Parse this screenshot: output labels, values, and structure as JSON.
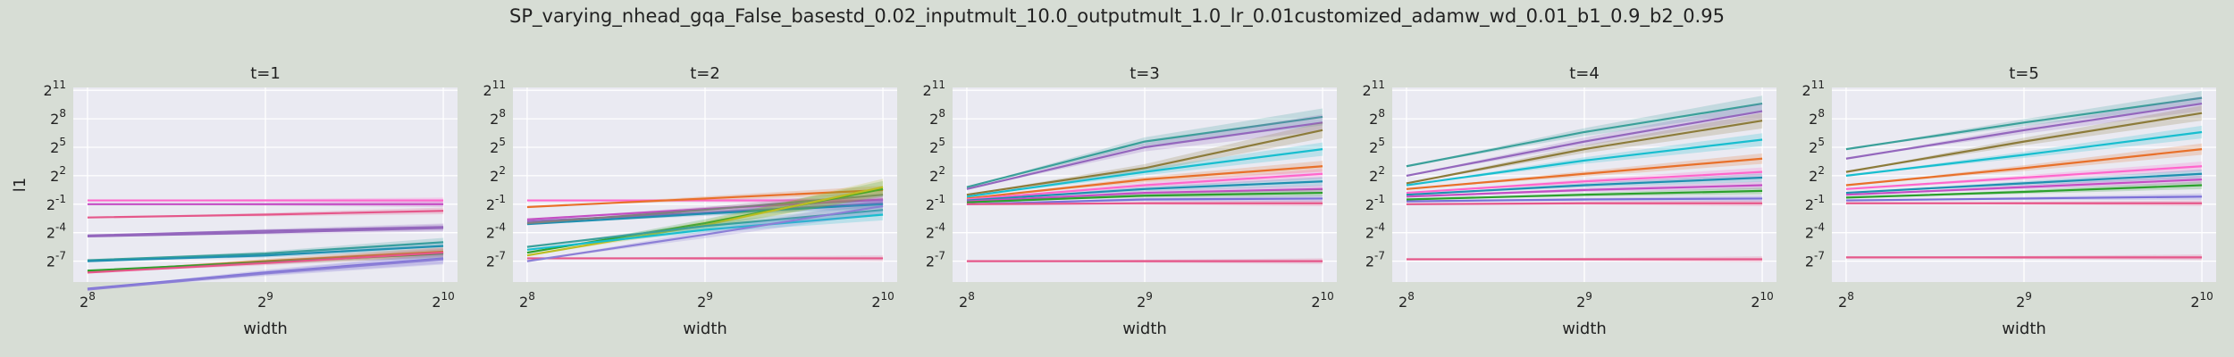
{
  "figure": {
    "suptitle": "SP_varying_nhead_gqa_False_basestd_0.02_inputmult_10.0_outputmult_1.0_lr_0.01customized_adamw_wd_0.01_b1_0.9_b2_0.95",
    "background": "#d7ddd5",
    "panel_background": "#eaeaf2"
  },
  "chart_data": [
    {
      "type": "line",
      "title": "t=1",
      "xlabel": "width",
      "ylabel": "l1",
      "xscale": "log2",
      "yscale": "log2",
      "x": [
        256,
        512,
        1024
      ],
      "xticks": [
        "2^8",
        "2^9",
        "2^10"
      ],
      "yticks": [
        "2^-7",
        "2^-4",
        "2^-1",
        "2^2",
        "2^5",
        "2^8",
        "2^11"
      ],
      "ylim_log2": [
        -9.2,
        11.3
      ],
      "grid": true,
      "series": [
        {
          "color": "#ff66cc",
          "log2_values": [
            -0.6,
            -0.6,
            -0.6
          ]
        },
        {
          "color": "#c44ec4",
          "log2_values": [
            -1.0,
            -1.0,
            -1.0
          ]
        },
        {
          "color": "#e5578a",
          "log2_values": [
            -2.4,
            -2.1,
            -1.7
          ]
        },
        {
          "color": "#9467bd",
          "log2_values": [
            -4.3,
            -3.8,
            -3.4
          ]
        },
        {
          "color": "#9467bd",
          "log2_values": [
            -4.4,
            -4.0,
            -3.5
          ]
        },
        {
          "color": "#3ba09a",
          "log2_values": [
            -6.9,
            -6.2,
            -5.0
          ]
        },
        {
          "color": "#1f8fb0",
          "log2_values": [
            -7.0,
            -6.4,
            -5.4
          ]
        },
        {
          "color": "#e8702a",
          "log2_values": [
            -8.1,
            -7.0,
            -6.0
          ]
        },
        {
          "color": "#2ca02c",
          "log2_values": [
            -8.0,
            -7.1,
            -6.2
          ]
        },
        {
          "color": "#e5578a",
          "log2_values": [
            -8.2,
            -7.2,
            -6.1
          ]
        },
        {
          "color": "#7b6fd8",
          "log2_values": [
            -9.9,
            -8.2,
            -6.7
          ]
        },
        {
          "color": "#8c7fd6",
          "log2_values": [
            -10.0,
            -8.3,
            -6.8
          ]
        }
      ]
    },
    {
      "type": "line",
      "title": "t=2",
      "xlabel": "width",
      "ylabel": "",
      "xscale": "log2",
      "yscale": "log2",
      "x": [
        256,
        512,
        1024
      ],
      "xticks": [
        "2^8",
        "2^9",
        "2^10"
      ],
      "yticks": [
        "2^-7",
        "2^-4",
        "2^-1",
        "2^2",
        "2^5",
        "2^8",
        "2^11"
      ],
      "ylim_log2": [
        -9.2,
        11.3
      ],
      "grid": true,
      "series": [
        {
          "color": "#e5578a",
          "log2_values": [
            -6.7,
            -6.7,
            -6.7
          ]
        },
        {
          "color": "#ff66cc",
          "log2_values": [
            -0.6,
            -0.6,
            -0.6
          ]
        },
        {
          "color": "#e8702a",
          "log2_values": [
            -1.3,
            -0.4,
            0.5
          ]
        },
        {
          "color": "#c44ec4",
          "log2_values": [
            -2.6,
            -1.5,
            -0.5
          ]
        },
        {
          "color": "#9467bd",
          "log2_values": [
            -2.8,
            -1.9,
            -0.9
          ]
        },
        {
          "color": "#1f8fb0",
          "log2_values": [
            -3.1,
            -2.0,
            -1.0
          ]
        },
        {
          "color": "#7f7f7f",
          "log2_values": [
            -3.0,
            -1.6,
            0.0
          ]
        },
        {
          "color": "#2ca02c",
          "log2_values": [
            -6.1,
            -3.0,
            0.6
          ]
        },
        {
          "color": "#bcbd22",
          "log2_values": [
            -6.4,
            -3.2,
            0.8
          ]
        },
        {
          "color": "#3ba09a",
          "log2_values": [
            -5.5,
            -3.3,
            -1.6
          ]
        },
        {
          "color": "#17becf",
          "log2_values": [
            -5.8,
            -3.7,
            -2.1
          ]
        },
        {
          "color": "#8c7fd6",
          "log2_values": [
            -7.0,
            -4.2,
            -1.2
          ]
        }
      ]
    },
    {
      "type": "line",
      "title": "t=3",
      "xlabel": "width",
      "ylabel": "",
      "xscale": "log2",
      "yscale": "log2",
      "x": [
        256,
        512,
        1024
      ],
      "xticks": [
        "2^8",
        "2^9",
        "2^10"
      ],
      "yticks": [
        "2^-7",
        "2^-4",
        "2^-1",
        "2^2",
        "2^5",
        "2^8",
        "2^11"
      ],
      "ylim_log2": [
        -9.2,
        11.3
      ],
      "grid": true,
      "series": [
        {
          "color": "#e5578a",
          "log2_values": [
            -7.0,
            -7.0,
            -7.0
          ]
        },
        {
          "color": "#3ba09a",
          "log2_values": [
            0.8,
            5.6,
            8.2
          ]
        },
        {
          "color": "#9467bd",
          "log2_values": [
            0.6,
            5.0,
            7.6
          ]
        },
        {
          "color": "#8c7b3a",
          "log2_values": [
            0.0,
            2.8,
            6.8
          ]
        },
        {
          "color": "#17becf",
          "log2_values": [
            -0.2,
            2.4,
            4.8
          ]
        },
        {
          "color": "#e8702a",
          "log2_values": [
            -0.4,
            1.6,
            3.0
          ]
        },
        {
          "color": "#ff66cc",
          "log2_values": [
            -0.5,
            1.0,
            2.2
          ]
        },
        {
          "color": "#1f8fb0",
          "log2_values": [
            -0.6,
            0.6,
            1.4
          ]
        },
        {
          "color": "#c44ec4",
          "log2_values": [
            -0.7,
            0.2,
            0.6
          ]
        },
        {
          "color": "#2ca02c",
          "log2_values": [
            -0.8,
            -0.1,
            0.2
          ]
        },
        {
          "color": "#7b6fd8",
          "log2_values": [
            -1.0,
            -0.5,
            -0.4
          ]
        },
        {
          "color": "#e5578a",
          "log2_values": [
            -1.0,
            -0.9,
            -0.9
          ]
        }
      ]
    },
    {
      "type": "line",
      "title": "t=4",
      "xlabel": "width",
      "ylabel": "",
      "xscale": "log2",
      "yscale": "log2",
      "x": [
        256,
        512,
        1024
      ],
      "xticks": [
        "2^8",
        "2^9",
        "2^10"
      ],
      "yticks": [
        "2^-7",
        "2^-4",
        "2^-1",
        "2^2",
        "2^5",
        "2^8",
        "2^11"
      ],
      "ylim_log2": [
        -9.2,
        11.3
      ],
      "grid": true,
      "series": [
        {
          "color": "#e5578a",
          "log2_values": [
            -6.8,
            -6.8,
            -6.8
          ]
        },
        {
          "color": "#3ba09a",
          "log2_values": [
            3.0,
            6.6,
            9.6
          ]
        },
        {
          "color": "#9467bd",
          "log2_values": [
            2.0,
            5.6,
            8.8
          ]
        },
        {
          "color": "#8c7b3a",
          "log2_values": [
            1.2,
            4.8,
            7.8
          ]
        },
        {
          "color": "#17becf",
          "log2_values": [
            1.0,
            3.6,
            5.8
          ]
        },
        {
          "color": "#e8702a",
          "log2_values": [
            0.6,
            2.2,
            3.8
          ]
        },
        {
          "color": "#ff66cc",
          "log2_values": [
            0.2,
            1.4,
            2.4
          ]
        },
        {
          "color": "#1f8fb0",
          "log2_values": [
            0.0,
            1.0,
            1.8
          ]
        },
        {
          "color": "#c44ec4",
          "log2_values": [
            -0.2,
            0.5,
            1.0
          ]
        },
        {
          "color": "#2ca02c",
          "log2_values": [
            -0.5,
            0.0,
            0.4
          ]
        },
        {
          "color": "#7b6fd8",
          "log2_values": [
            -0.7,
            -0.5,
            -0.4
          ]
        },
        {
          "color": "#e5578a",
          "log2_values": [
            -1.0,
            -0.9,
            -0.9
          ]
        }
      ]
    },
    {
      "type": "line",
      "title": "t=5",
      "xlabel": "width",
      "ylabel": "",
      "xscale": "log2",
      "yscale": "log2",
      "x": [
        256,
        512,
        1024
      ],
      "xticks": [
        "2^8",
        "2^9",
        "2^10"
      ],
      "yticks": [
        "2^-7",
        "2^-4",
        "2^-1",
        "2^2",
        "2^5",
        "2^8",
        "2^11"
      ],
      "ylim_log2": [
        -9.2,
        11.3
      ],
      "grid": true,
      "series": [
        {
          "color": "#e5578a",
          "log2_values": [
            -6.6,
            -6.6,
            -6.6
          ]
        },
        {
          "color": "#3ba09a",
          "log2_values": [
            4.8,
            7.6,
            10.2
          ]
        },
        {
          "color": "#9467bd",
          "log2_values": [
            3.8,
            6.8,
            9.6
          ]
        },
        {
          "color": "#8c7b3a",
          "log2_values": [
            2.4,
            5.6,
            8.6
          ]
        },
        {
          "color": "#17becf",
          "log2_values": [
            2.0,
            4.2,
            6.6
          ]
        },
        {
          "color": "#e8702a",
          "log2_values": [
            1.0,
            2.8,
            4.8
          ]
        },
        {
          "color": "#ff66cc",
          "log2_values": [
            0.6,
            1.8,
            3.0
          ]
        },
        {
          "color": "#1f8fb0",
          "log2_values": [
            0.2,
            1.2,
            2.2
          ]
        },
        {
          "color": "#c44ec4",
          "log2_values": [
            0.0,
            0.8,
            1.6
          ]
        },
        {
          "color": "#2ca02c",
          "log2_values": [
            -0.3,
            0.3,
            1.0
          ]
        },
        {
          "color": "#7b6fd8",
          "log2_values": [
            -0.6,
            -0.4,
            -0.2
          ]
        },
        {
          "color": "#e5578a",
          "log2_values": [
            -0.9,
            -0.9,
            -0.9
          ]
        }
      ]
    }
  ]
}
